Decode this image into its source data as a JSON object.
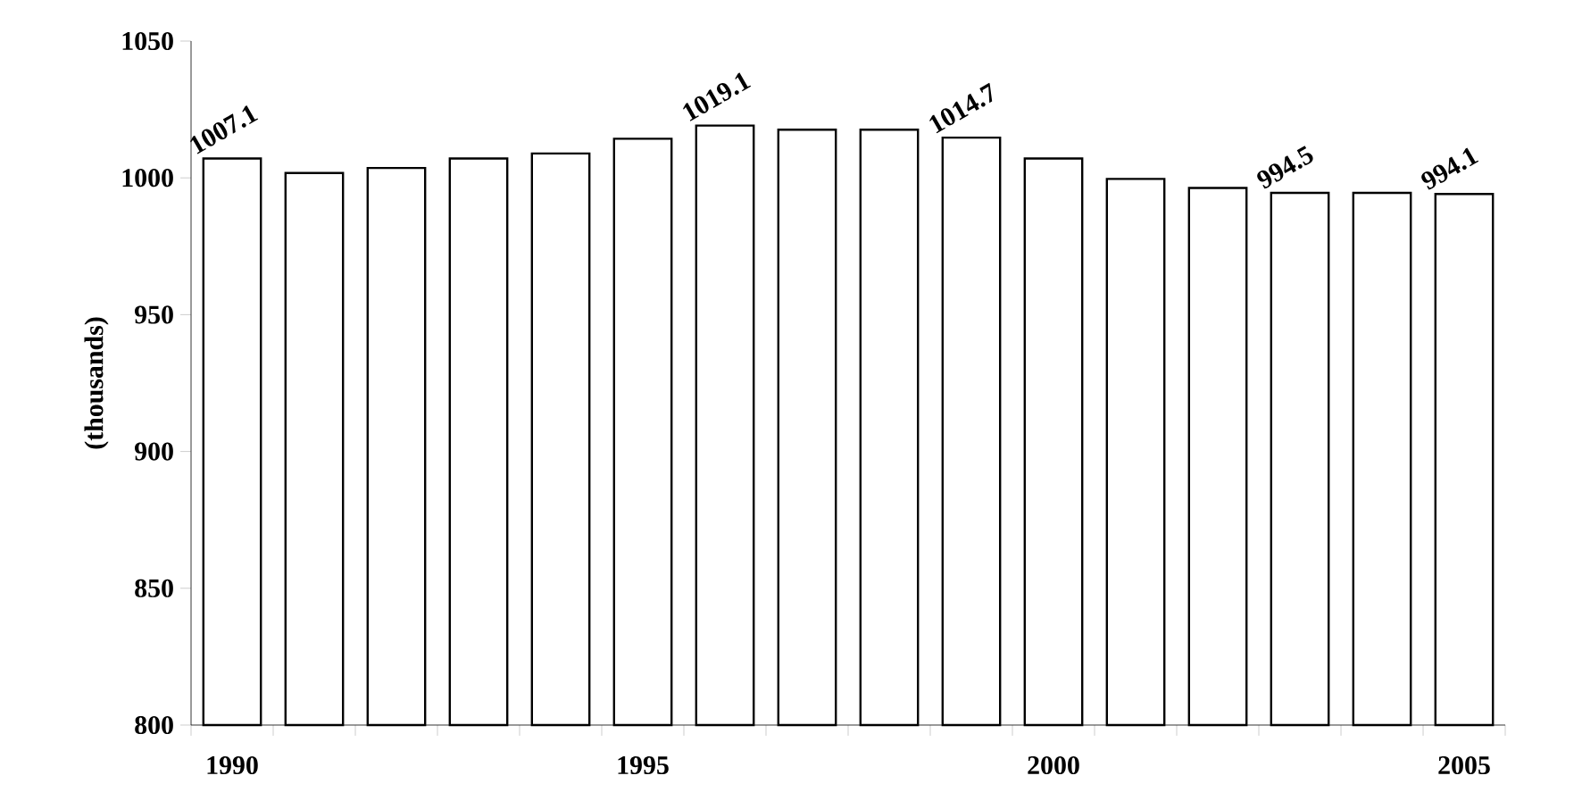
{
  "chart_data": {
    "type": "bar",
    "ylabel": "(thousands)",
    "categories": [
      "1990",
      null,
      null,
      null,
      null,
      "1995",
      null,
      null,
      null,
      null,
      "2000",
      null,
      null,
      null,
      null,
      "2005"
    ],
    "values": [
      1007.1,
      1001.8,
      1003.6,
      1007.1,
      1008.9,
      1014.3,
      1019.1,
      1017.6,
      1017.6,
      1014.7,
      1007.1,
      999.6,
      996.3,
      994.5,
      994.5,
      994.1
    ],
    "value_labels": [
      "1007.1",
      null,
      null,
      null,
      null,
      null,
      "1019.1",
      null,
      null,
      "1014.7",
      null,
      null,
      null,
      "994.5",
      null,
      "994.1"
    ],
    "color": "#ffffff",
    "ylim": [
      800,
      1050
    ],
    "yticks": [
      800,
      850,
      900,
      950,
      1000,
      1050
    ],
    "grid": false
  }
}
